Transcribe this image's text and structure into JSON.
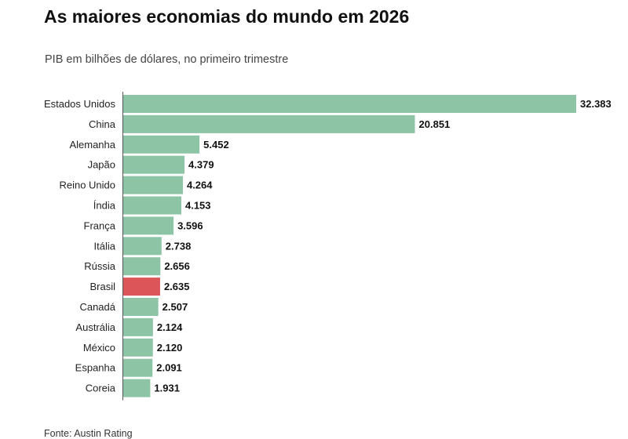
{
  "header": {
    "title": "As maiores economias do mundo em 2026",
    "subtitle": "PIB em bilhões de dólares, no primeiro trimestre"
  },
  "footer": {
    "source": "Fonte: Austin Rating"
  },
  "colors": {
    "bar": "#8dc4a6",
    "highlight": "#dc5558",
    "axis": "#555555",
    "label": "#222222",
    "value": "#111111"
  },
  "chart_data": {
    "type": "bar",
    "orientation": "horizontal",
    "title": "As maiores economias do mundo em 2026",
    "subtitle": "PIB em bilhões de dólares, no primeiro trimestre",
    "xlabel": "",
    "ylabel": "",
    "grid": false,
    "legend": "none",
    "categories": [
      "Estados Unidos",
      "China",
      "Alemanha",
      "Japão",
      "Reino Unido",
      "Índia",
      "França",
      "Itália",
      "Rússia",
      "Brasil",
      "Canadá",
      "Austrália",
      "México",
      "Espanha",
      "Coreia"
    ],
    "values": [
      32383,
      20851,
      5452,
      4379,
      4264,
      4153,
      3596,
      2738,
      2656,
      2635,
      2507,
      2124,
      2120,
      2091,
      1931
    ],
    "value_labels": [
      "32.383",
      "20.851",
      "5.452",
      "4.379",
      "4.264",
      "4.153",
      "3.596",
      "2.738",
      "2.656",
      "2.635",
      "2.507",
      "2.124",
      "2.120",
      "2.091",
      "1.931"
    ],
    "highlight": "Brasil",
    "xlim": [
      0,
      32383
    ]
  }
}
